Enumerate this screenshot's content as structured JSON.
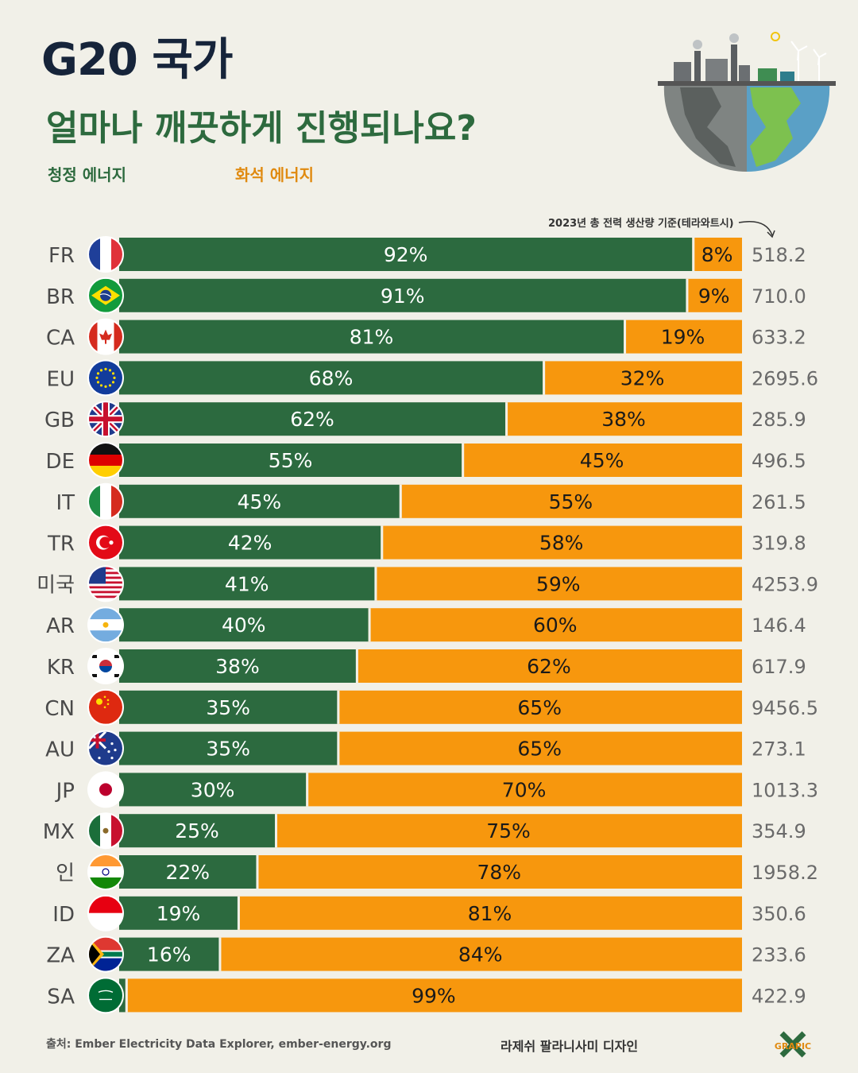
{
  "title": "G20 국가",
  "subtitle": "얼마나 깨끗하게 진행되나요?",
  "legend": {
    "clean": "청정 에너지",
    "fossil": "화석 에너지"
  },
  "column_note": "2023년 총 전력 생산량 기준(테라와트시)",
  "source": "출처: Ember Electricity Data Explorer, ember-energy.org",
  "designer": "라제쉬 팔라니사미 디자인",
  "logo_text": "GRAPIC",
  "colors": {
    "clean": "#2c6a3f",
    "fossil": "#f7970d",
    "text": "#4a4a4a"
  },
  "chart_data": {
    "type": "bar",
    "orientation": "horizontal",
    "stacked": true,
    "categories": [
      "FR",
      "BR",
      "CA",
      "EU",
      "GB",
      "DE",
      "IT",
      "TR",
      "미국",
      "AR",
      "KR",
      "CN",
      "AU",
      "JP",
      "MX",
      "인",
      "ID",
      "ZA",
      "SA"
    ],
    "series": [
      {
        "name": "청정 에너지",
        "values": [
          92,
          91,
          81,
          68,
          62,
          55,
          45,
          42,
          41,
          40,
          38,
          35,
          35,
          30,
          25,
          22,
          19,
          16,
          1
        ]
      },
      {
        "name": "화석 에너지",
        "values": [
          8,
          9,
          19,
          32,
          38,
          45,
          55,
          58,
          59,
          60,
          62,
          65,
          65,
          70,
          75,
          78,
          81,
          84,
          99
        ]
      }
    ],
    "clean_labels": [
      "92%",
      "91%",
      "81%",
      "68%",
      "62%",
      "55%",
      "45%",
      "42%",
      "41%",
      "40%",
      "38%",
      "35%",
      "35%",
      "30%",
      "25%",
      "22%",
      "19%",
      "16%",
      ""
    ],
    "fossil_labels": [
      "8%",
      "9%",
      "19%",
      "32%",
      "38%",
      "45%",
      "55%",
      "58%",
      "59%",
      "60%",
      "62%",
      "65%",
      "65%",
      "70%",
      "75%",
      "78%",
      "81%",
      "84%",
      "99%"
    ],
    "totals_twh": [
      "518.2",
      "710.0",
      "633.2",
      "2695.6",
      "285.9",
      "496.5",
      "261.5",
      "319.8",
      "4253.9",
      "146.4",
      "617.9",
      "9456.5",
      "273.1",
      "1013.3",
      "354.9",
      "1958.2",
      "350.6",
      "233.6",
      "422.9"
    ],
    "flags": [
      "france",
      "brazil",
      "canada",
      "eu",
      "uk",
      "germany",
      "italy",
      "turkey",
      "usa",
      "argentina",
      "korea",
      "china",
      "australia",
      "japan",
      "mexico",
      "india",
      "indonesia",
      "south-africa",
      "saudi-arabia"
    ],
    "xlim": [
      0,
      100
    ]
  }
}
